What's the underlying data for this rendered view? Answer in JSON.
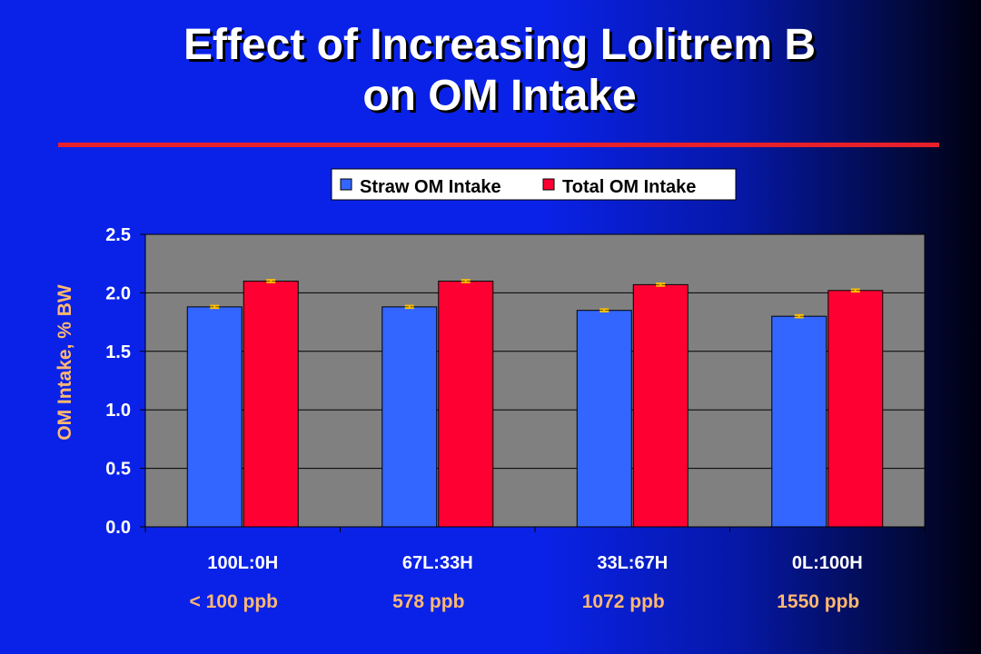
{
  "title": {
    "line1": "Effect of Increasing Lolitrem B",
    "line2": "on OM Intake"
  },
  "colors": {
    "straw": "#3366ff",
    "total": "#ff0033",
    "plot_bg": "#808080",
    "error_bar": "#ffc000",
    "accent_label": "#ffb870"
  },
  "chart_data": {
    "type": "bar",
    "categories": [
      "100L:0H",
      "67L:33H",
      "33L:67H",
      "0L:100H"
    ],
    "category_sublabels": [
      "< 100 ppb",
      "578 ppb",
      "1072 ppb",
      "1550 ppb"
    ],
    "series": [
      {
        "name": "Straw OM Intake",
        "values": [
          1.88,
          1.88,
          1.85,
          1.8
        ],
        "errors": [
          0.01,
          0.01,
          0.01,
          0.01
        ]
      },
      {
        "name": "Total OM Intake",
        "values": [
          2.1,
          2.1,
          2.07,
          2.02
        ],
        "errors": [
          0.01,
          0.01,
          0.01,
          0.01
        ]
      }
    ],
    "ylabel": "OM Intake, % BW",
    "xlabel": "",
    "ylim": [
      0,
      2.5
    ],
    "yticks": [
      "0.0",
      "0.5",
      "1.0",
      "1.5",
      "2.0",
      "2.5"
    ],
    "grid": true,
    "legend_position": "top-center"
  }
}
